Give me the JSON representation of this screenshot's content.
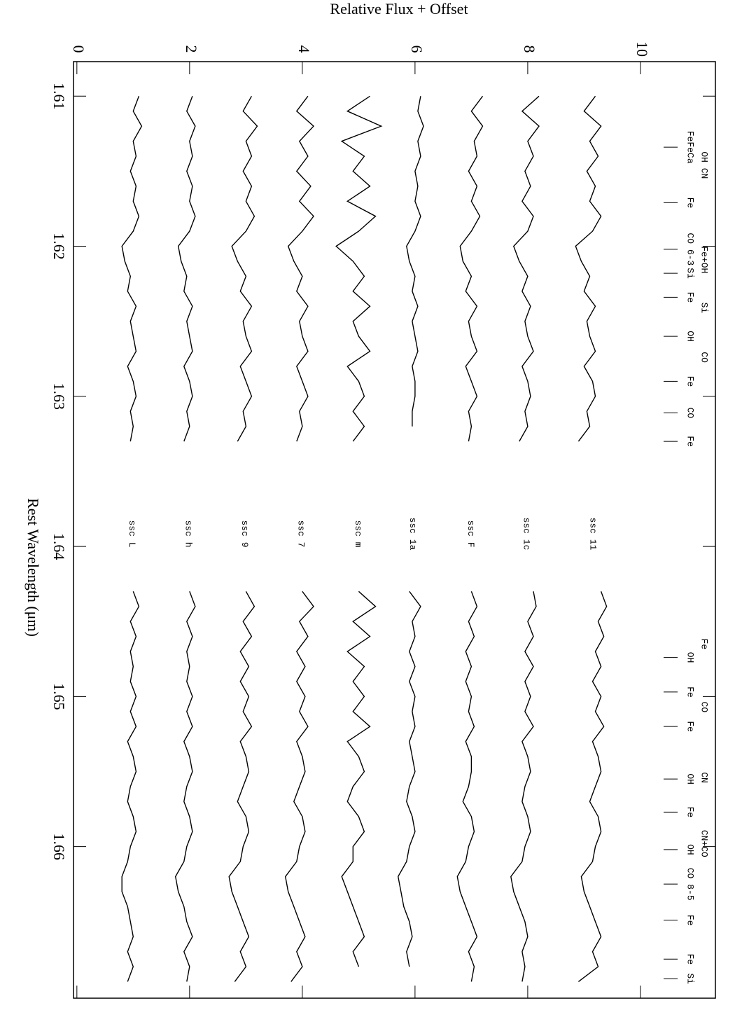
{
  "chart_data": {
    "type": "line",
    "ylabel": "Relative Flux + Offset",
    "xlabel": "Rest Wavelength (μm)",
    "xlim": [
      1.6077,
      1.6701
    ],
    "xticks": [
      1.61,
      1.62,
      1.63,
      1.64,
      1.65,
      1.66
    ],
    "ylim": [
      -0.06,
      11.33
    ],
    "yticks": [
      0,
      2,
      4,
      6,
      8,
      10
    ],
    "color": "#000000",
    "x": [
      1.61,
      1.611,
      1.612,
      1.613,
      1.614,
      1.615,
      1.616,
      1.617,
      1.618,
      1.619,
      1.62,
      1.621,
      1.622,
      1.623,
      1.624,
      1.625,
      1.626,
      1.627,
      1.628,
      1.629,
      1.63,
      1.631,
      1.632,
      1.633,
      1.637,
      1.643,
      1.644,
      1.645,
      1.646,
      1.647,
      1.648,
      1.649,
      1.65,
      1.651,
      1.652,
      1.653,
      1.654,
      1.655,
      1.656,
      1.657,
      1.658,
      1.659,
      1.66,
      1.661,
      1.662,
      1.663,
      1.664,
      1.665,
      1.666,
      1.667,
      1.668,
      1.669
    ],
    "series": [
      {
        "name": "ssc 11",
        "values": [
          9.2,
          9.0,
          9.3,
          9.1,
          9.25,
          9.05,
          9.2,
          9.1,
          9.3,
          9.15,
          8.85,
          8.95,
          9.1,
          9.0,
          9.2,
          9.05,
          9.1,
          9.2,
          9.0,
          9.15,
          9.2,
          9.05,
          9.1,
          8.9,
          null,
          9.3,
          9.4,
          9.25,
          9.35,
          9.2,
          9.3,
          9.15,
          9.3,
          9.2,
          9.35,
          9.15,
          9.25,
          9.3,
          9.2,
          9.1,
          9.25,
          9.3,
          9.2,
          9.15,
          8.95,
          9.0,
          9.1,
          9.2,
          9.3,
          9.15,
          9.25,
          8.9
        ]
      },
      {
        "name": "ssc 1c",
        "values": [
          8.2,
          7.9,
          8.2,
          8.0,
          8.1,
          7.95,
          8.05,
          7.9,
          8.1,
          8.0,
          7.75,
          7.85,
          8.0,
          7.9,
          8.05,
          7.95,
          8.0,
          8.1,
          7.9,
          8.0,
          8.05,
          7.95,
          8.0,
          7.85,
          null,
          8.1,
          8.15,
          8.0,
          8.1,
          7.95,
          8.1,
          7.95,
          8.05,
          7.95,
          8.1,
          7.9,
          8.0,
          8.05,
          7.95,
          7.9,
          8.0,
          8.05,
          7.95,
          7.9,
          7.7,
          7.75,
          7.85,
          7.95,
          8.0,
          7.9,
          7.95,
          7.9
        ]
      },
      {
        "name": "ssc F",
        "values": [
          7.2,
          7.0,
          7.2,
          7.05,
          7.1,
          6.95,
          7.1,
          7.0,
          7.15,
          7.0,
          6.8,
          6.85,
          7.0,
          6.9,
          7.1,
          6.95,
          7.0,
          7.1,
          6.9,
          7.0,
          7.1,
          6.95,
          7.0,
          6.95,
          null,
          7.0,
          7.1,
          6.95,
          7.05,
          6.9,
          7.0,
          6.9,
          7.0,
          6.95,
          7.05,
          6.9,
          7.0,
          7.0,
          6.95,
          6.85,
          7.0,
          7.05,
          6.95,
          6.9,
          6.75,
          6.8,
          6.9,
          7.0,
          7.1,
          6.95,
          7.05,
          7.0
        ]
      },
      {
        "name": "ssc 1a",
        "values": [
          6.1,
          6.05,
          6.15,
          6.05,
          6.1,
          6.0,
          6.05,
          6.0,
          6.1,
          6.0,
          5.85,
          5.9,
          6.0,
          5.95,
          6.05,
          5.95,
          6.0,
          6.05,
          5.95,
          6.0,
          6.0,
          5.95,
          5.95,
          null,
          null,
          5.9,
          6.1,
          5.95,
          6.0,
          5.9,
          6.0,
          5.9,
          6.0,
          5.95,
          6.0,
          5.9,
          5.95,
          6.0,
          5.9,
          5.85,
          5.95,
          6.0,
          5.9,
          5.85,
          5.7,
          5.75,
          5.8,
          5.9,
          5.95,
          5.85,
          5.9,
          null
        ]
      },
      {
        "name": "ssc m",
        "values": [
          5.2,
          4.8,
          5.4,
          4.7,
          5.1,
          4.9,
          5.2,
          4.8,
          5.3,
          5.0,
          4.6,
          4.9,
          5.1,
          4.9,
          5.2,
          4.9,
          5.0,
          5.2,
          4.8,
          5.0,
          5.1,
          4.9,
          5.1,
          4.9,
          null,
          5.0,
          5.3,
          4.9,
          5.2,
          4.8,
          5.1,
          4.9,
          5.1,
          4.9,
          5.2,
          4.8,
          5.0,
          5.1,
          4.9,
          4.8,
          5.0,
          5.1,
          4.9,
          4.9,
          4.7,
          4.8,
          4.9,
          5.0,
          5.1,
          4.9,
          5.0,
          null
        ]
      },
      {
        "name": "ssc 7",
        "values": [
          4.1,
          3.9,
          4.2,
          3.95,
          4.1,
          3.9,
          4.15,
          3.95,
          4.2,
          4.0,
          3.75,
          3.85,
          4.0,
          3.9,
          4.1,
          3.95,
          4.0,
          4.1,
          3.9,
          4.0,
          4.1,
          3.95,
          4.0,
          3.9,
          null,
          4.0,
          4.2,
          3.95,
          4.1,
          3.9,
          4.05,
          3.9,
          4.05,
          3.95,
          4.1,
          3.9,
          4.0,
          4.05,
          3.95,
          3.85,
          4.0,
          4.05,
          3.95,
          3.9,
          3.7,
          3.75,
          3.85,
          3.95,
          4.05,
          3.9,
          4.0,
          3.8
        ]
      },
      {
        "name": "ssc 9",
        "values": [
          3.1,
          2.95,
          3.2,
          3.0,
          3.1,
          2.95,
          3.1,
          3.0,
          3.15,
          3.0,
          2.75,
          2.85,
          3.0,
          2.9,
          3.1,
          2.95,
          3.0,
          3.1,
          2.9,
          3.0,
          3.1,
          2.95,
          3.0,
          2.85,
          null,
          3.0,
          3.15,
          2.95,
          3.1,
          2.9,
          3.05,
          2.9,
          3.05,
          2.95,
          3.1,
          2.9,
          3.0,
          3.05,
          2.95,
          2.85,
          3.0,
          3.05,
          2.95,
          2.9,
          2.7,
          2.75,
          2.85,
          2.95,
          3.05,
          2.9,
          3.0,
          2.8
        ]
      },
      {
        "name": "ssc h",
        "values": [
          2.05,
          1.95,
          2.1,
          2.0,
          2.05,
          1.95,
          2.05,
          2.0,
          2.1,
          2.0,
          1.8,
          1.85,
          1.95,
          1.9,
          2.05,
          1.95,
          2.0,
          2.05,
          1.9,
          2.0,
          2.05,
          1.95,
          2.0,
          1.9,
          null,
          2.0,
          2.1,
          1.95,
          2.05,
          1.95,
          2.0,
          1.95,
          2.05,
          1.95,
          2.05,
          1.9,
          2.0,
          2.05,
          1.95,
          1.9,
          2.0,
          2.05,
          1.95,
          1.9,
          1.75,
          1.8,
          1.9,
          1.95,
          2.05,
          1.9,
          2.0,
          1.95
        ]
      },
      {
        "name": "ssc L",
        "values": [
          1.1,
          1.0,
          1.15,
          1.0,
          1.05,
          0.95,
          1.05,
          1.0,
          1.1,
          1.0,
          0.8,
          0.85,
          0.95,
          0.9,
          1.05,
          0.95,
          1.0,
          1.05,
          0.9,
          1.0,
          1.05,
          0.95,
          1.0,
          0.95,
          null,
          1.0,
          1.1,
          0.95,
          1.05,
          0.95,
          1.0,
          0.95,
          1.05,
          0.95,
          1.05,
          0.9,
          1.0,
          1.05,
          0.95,
          0.9,
          1.0,
          1.05,
          0.95,
          0.9,
          0.8,
          0.8,
          0.9,
          0.95,
          1.0,
          0.9,
          1.0,
          0.9
        ]
      }
    ],
    "line_ids": {
      "upper": [
        {
          "text": "OH CN",
          "x": 1.6146
        },
        {
          "text": "Fe+OH",
          "x": 1.6209
        },
        {
          "text": "Si",
          "x": 1.6241
        },
        {
          "text": "CO",
          "x": 1.6274
        },
        {
          "text": "Fe",
          "x": 1.6465
        },
        {
          "text": "CO",
          "x": 1.6507
        },
        {
          "text": "CN",
          "x": 1.6554
        },
        {
          "text": "CN+CO",
          "x": 1.6598
        }
      ],
      "lower": [
        {
          "text": "FeFeCa",
          "x": 1.6134
        },
        {
          "text": "Fe",
          "x": 1.6171
        },
        {
          "text": "CO 6-3",
          "x": 1.6202
        },
        {
          "text": "Si",
          "x": 1.6218
        },
        {
          "text": "Fe",
          "x": 1.6234
        },
        {
          "text": "OH",
          "x": 1.626
        },
        {
          "text": "Fe",
          "x": 1.629
        },
        {
          "text": "CO",
          "x": 1.6311
        },
        {
          "text": "Fe",
          "x": 1.633
        },
        {
          "text": "OH",
          "x": 1.6474
        },
        {
          "text": "Fe",
          "x": 1.6497
        },
        {
          "text": "Fe",
          "x": 1.652
        },
        {
          "text": "OH",
          "x": 1.6555
        },
        {
          "text": "Fe",
          "x": 1.6577
        },
        {
          "text": "OH",
          "x": 1.6602
        },
        {
          "text": "CO 8-5",
          "x": 1.6625
        },
        {
          "text": "Fe",
          "x": 1.6649
        },
        {
          "text": "Fe",
          "x": 1.6675
        },
        {
          "text": "Si",
          "x": 1.6688
        }
      ]
    }
  }
}
